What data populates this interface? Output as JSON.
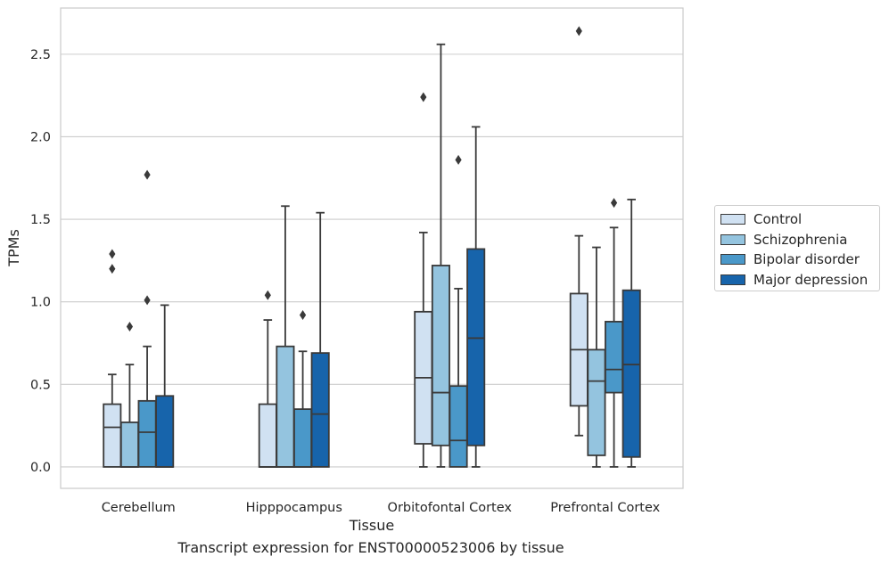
{
  "chart_data": {
    "type": "box",
    "title": "",
    "xlabel": "Tissue",
    "ylabel": "TPMs",
    "caption": "Transcript expression for ENST00000523006 by tissue",
    "categories": [
      "Cerebellum",
      "Hipppocampus",
      "Orbitofontal Cortex",
      "Prefrontal Cortex"
    ],
    "ylim": [
      -0.13,
      2.78
    ],
    "yticks": [
      0.0,
      0.5,
      1.0,
      1.5,
      2.0,
      2.5
    ],
    "ytick_labels": [
      "0.0",
      "0.5",
      "1.0",
      "1.5",
      "2.0",
      "2.5"
    ],
    "grid": "horizontal",
    "legend_position": "right",
    "series": [
      {
        "name": "Control",
        "color": "#d0e1f2",
        "boxes": [
          {
            "whisker_low": 0.0,
            "q1": 0.0,
            "median": 0.24,
            "q3": 0.38,
            "whisker_high": 0.56,
            "outliers": [
              1.29,
              1.2
            ]
          },
          {
            "whisker_low": 0.0,
            "q1": 0.0,
            "median": 0.0,
            "q3": 0.38,
            "whisker_high": 0.89,
            "outliers": [
              1.04
            ]
          },
          {
            "whisker_low": 0.0,
            "q1": 0.14,
            "median": 0.54,
            "q3": 0.94,
            "whisker_high": 1.42,
            "outliers": [
              2.24
            ]
          },
          {
            "whisker_low": 0.19,
            "q1": 0.37,
            "median": 0.71,
            "q3": 1.05,
            "whisker_high": 1.4,
            "outliers": [
              2.64
            ]
          }
        ]
      },
      {
        "name": "Schizophrenia",
        "color": "#94c4df",
        "boxes": [
          {
            "whisker_low": 0.0,
            "q1": 0.0,
            "median": 0.0,
            "q3": 0.27,
            "whisker_high": 0.62,
            "outliers": [
              0.85
            ]
          },
          {
            "whisker_low": 0.0,
            "q1": 0.0,
            "median": 0.0,
            "q3": 0.73,
            "whisker_high": 1.58,
            "outliers": []
          },
          {
            "whisker_low": 0.0,
            "q1": 0.13,
            "median": 0.45,
            "q3": 1.22,
            "whisker_high": 2.56,
            "outliers": []
          },
          {
            "whisker_low": 0.0,
            "q1": 0.07,
            "median": 0.52,
            "q3": 0.71,
            "whisker_high": 1.33,
            "outliers": []
          }
        ]
      },
      {
        "name": "Bipolar disorder",
        "color": "#4a98c9",
        "boxes": [
          {
            "whisker_low": 0.0,
            "q1": 0.0,
            "median": 0.21,
            "q3": 0.4,
            "whisker_high": 0.73,
            "outliers": [
              1.01,
              1.77
            ]
          },
          {
            "whisker_low": 0.0,
            "q1": 0.0,
            "median": 0.0,
            "q3": 0.35,
            "whisker_high": 0.7,
            "outliers": [
              0.92
            ]
          },
          {
            "whisker_low": 0.0,
            "q1": 0.0,
            "median": 0.16,
            "q3": 0.49,
            "whisker_high": 1.08,
            "outliers": [
              1.86
            ]
          },
          {
            "whisker_low": 0.0,
            "q1": 0.45,
            "median": 0.59,
            "q3": 0.88,
            "whisker_high": 1.45,
            "outliers": [
              1.6
            ]
          }
        ]
      },
      {
        "name": "Major depression",
        "color": "#1764ab",
        "boxes": [
          {
            "whisker_low": 0.0,
            "q1": 0.0,
            "median": 0.0,
            "q3": 0.43,
            "whisker_high": 0.98,
            "outliers": []
          },
          {
            "whisker_low": 0.0,
            "q1": 0.0,
            "median": 0.32,
            "q3": 0.69,
            "whisker_high": 1.54,
            "outliers": []
          },
          {
            "whisker_low": 0.0,
            "q1": 0.13,
            "median": 0.78,
            "q3": 1.32,
            "whisker_high": 2.06,
            "outliers": []
          },
          {
            "whisker_low": 0.0,
            "q1": 0.06,
            "median": 0.62,
            "q3": 1.07,
            "whisker_high": 1.62,
            "outliers": []
          }
        ]
      }
    ]
  }
}
